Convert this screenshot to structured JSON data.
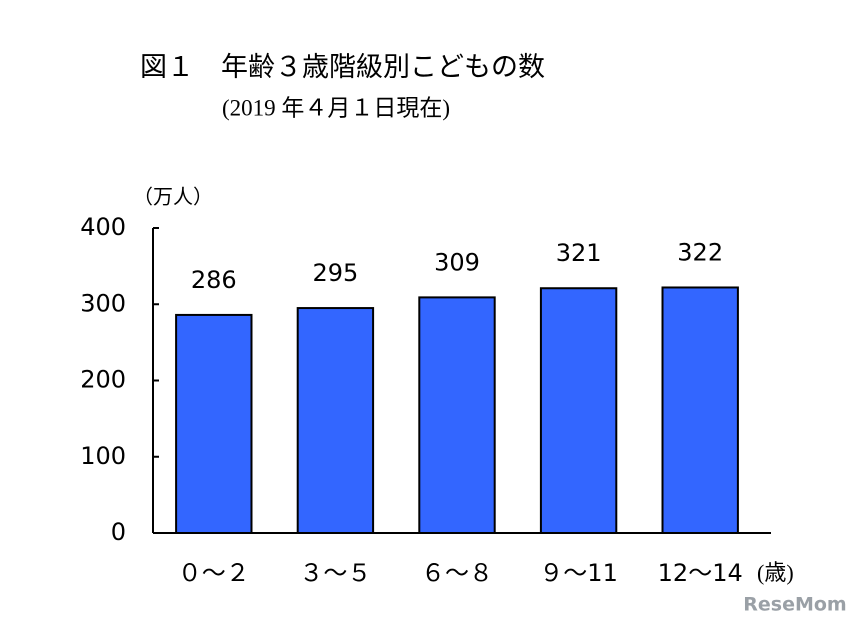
{
  "chart_data": {
    "type": "bar",
    "title": "図１　年齢３歳階級別こどもの数",
    "subtitle": "(2019 年４月１日現在)",
    "y_label": "（万人）",
    "x_label": "(歳)",
    "categories": [
      "０～２",
      "３～５",
      "６～８",
      "９～11",
      "12～14"
    ],
    "values": [
      286,
      295,
      309,
      321,
      322
    ],
    "color": "#3366ff",
    "ylim": [
      0,
      400
    ],
    "yticks": [
      0,
      100,
      200,
      300,
      400
    ],
    "grid": false
  },
  "watermark": "ReseMom"
}
